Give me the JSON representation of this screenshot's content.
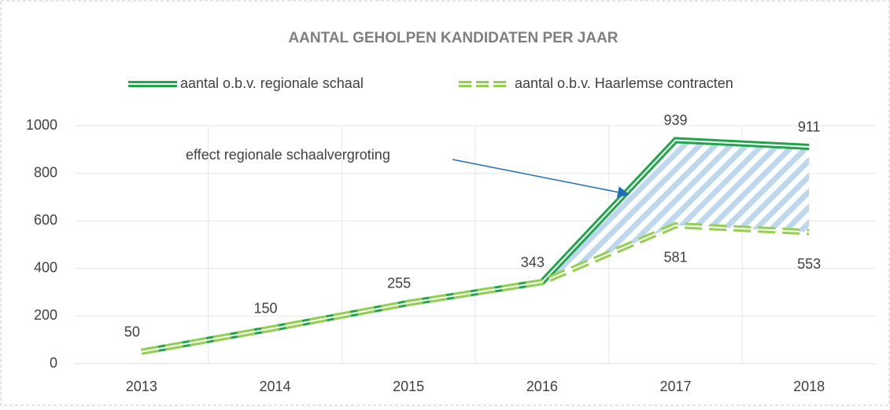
{
  "chart_data": {
    "type": "line",
    "title": "AANTAL GEHOLPEN KANDIDATEN PER JAAR",
    "categories": [
      "2013",
      "2014",
      "2015",
      "2016",
      "2017",
      "2018"
    ],
    "series": [
      {
        "name": "aantal o.b.v. regionale schaal",
        "color": "#1fa64a",
        "values": [
          50,
          150,
          255,
          343,
          939,
          911
        ]
      },
      {
        "name": "aantal o.b.v. Haarlemse contracten",
        "color": "#92d050",
        "values": [
          50,
          150,
          255,
          343,
          581,
          553
        ]
      }
    ],
    "annotation": "effect regionale schaalvergroting",
    "ylim": [
      0,
      1000
    ],
    "yticks": [
      0,
      200,
      400,
      600,
      800,
      1000
    ],
    "grid": true,
    "legend": "top"
  }
}
